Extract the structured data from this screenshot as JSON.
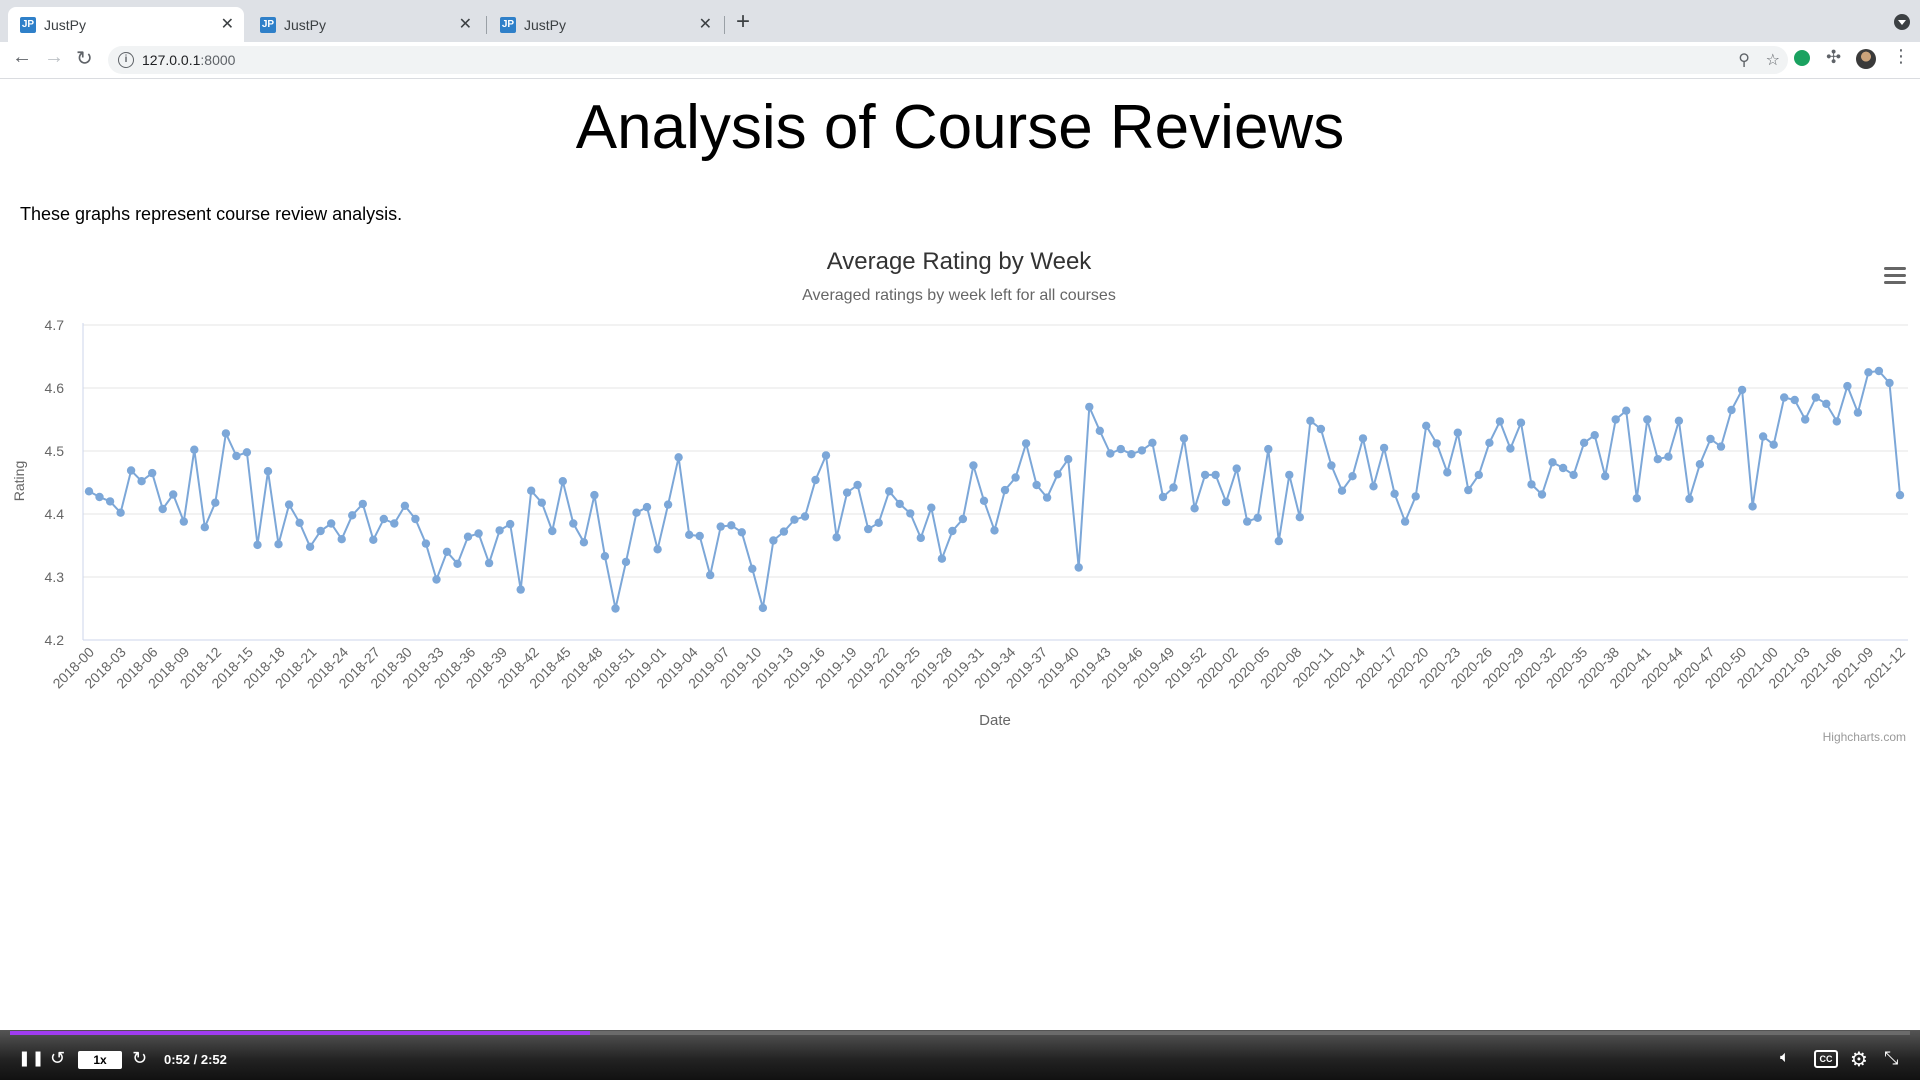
{
  "browser": {
    "tabs": [
      {
        "label": "JustPy",
        "favicon": "JP",
        "active": true
      },
      {
        "label": "JustPy",
        "favicon": "JP",
        "active": false
      },
      {
        "label": "JustPy",
        "favicon": "JP",
        "active": false
      }
    ],
    "url_host": "127.0.0.1",
    "url_port": ":8000"
  },
  "page": {
    "title": "Analysis of Course Reviews",
    "intro": "These graphs represent course review analysis."
  },
  "chart_data": {
    "type": "line",
    "title": "Average Rating by Week",
    "subtitle": "Averaged ratings by week left for all courses",
    "xlabel": "Date",
    "ylabel": "Rating",
    "ylim": [
      4.2,
      4.7
    ],
    "yticks": [
      4.2,
      4.3,
      4.4,
      4.5,
      4.6,
      4.7
    ],
    "grid": true,
    "credits": "Highcharts.com",
    "color": "#7ca7d8",
    "tick_labels": [
      "2018-00",
      "2018-03",
      "2018-06",
      "2018-09",
      "2018-12",
      "2018-15",
      "2018-18",
      "2018-21",
      "2018-24",
      "2018-27",
      "2018-30",
      "2018-33",
      "2018-36",
      "2018-39",
      "2018-42",
      "2018-45",
      "2018-48",
      "2018-51",
      "2019-01",
      "2019-04",
      "2019-07",
      "2019-10",
      "2019-13",
      "2019-16",
      "2019-19",
      "2019-22",
      "2019-25",
      "2019-28",
      "2019-31",
      "2019-34",
      "2019-37",
      "2019-40",
      "2019-43",
      "2019-46",
      "2019-49",
      "2019-52",
      "2020-02",
      "2020-05",
      "2020-08",
      "2020-11",
      "2020-14",
      "2020-17",
      "2020-20",
      "2020-23",
      "2020-26",
      "2020-29",
      "2020-32",
      "2020-35",
      "2020-38",
      "2020-41",
      "2020-44",
      "2020-47",
      "2020-50",
      "2021-00",
      "2021-03",
      "2021-06",
      "2021-09",
      "2021-12"
    ],
    "values": [
      4.436,
      4.427,
      4.42,
      4.402,
      4.469,
      4.452,
      4.465,
      4.408,
      4.431,
      4.388,
      4.502,
      4.379,
      4.418,
      4.528,
      4.492,
      4.498,
      4.351,
      4.468,
      4.352,
      4.415,
      4.386,
      4.348,
      4.373,
      4.385,
      4.36,
      4.398,
      4.416,
      4.359,
      4.392,
      4.385,
      4.413,
      4.392,
      4.353,
      4.296,
      4.34,
      4.321,
      4.364,
      4.369,
      4.322,
      4.374,
      4.384,
      4.28,
      4.437,
      4.418,
      4.373,
      4.452,
      4.385,
      4.355,
      4.43,
      4.333,
      4.25,
      4.324,
      4.402,
      4.411,
      4.344,
      4.415,
      4.49,
      4.367,
      4.365,
      4.303,
      4.38,
      4.382,
      4.371,
      4.313,
      4.251,
      4.358,
      4.372,
      4.391,
      4.396,
      4.454,
      4.493,
      4.363,
      4.434,
      4.446,
      4.376,
      4.386,
      4.436,
      4.416,
      4.401,
      4.362,
      4.41,
      4.329,
      4.373,
      4.392,
      4.477,
      4.421,
      4.374,
      4.438,
      4.458,
      4.512,
      4.446,
      4.426,
      4.463,
      4.487,
      4.315,
      4.57,
      4.532,
      4.496,
      4.503,
      4.495,
      4.501,
      4.513,
      4.427,
      4.442,
      4.52,
      4.409,
      4.462,
      4.462,
      4.419,
      4.472,
      4.388,
      4.394,
      4.503,
      4.357,
      4.462,
      4.395,
      4.548,
      4.535,
      4.477,
      4.437,
      4.46,
      4.52,
      4.444,
      4.505,
      4.432,
      4.388,
      4.428,
      4.54,
      4.512,
      4.466,
      4.529,
      4.438,
      4.462,
      4.513,
      4.547,
      4.504,
      4.545,
      4.447,
      4.431,
      4.482,
      4.473,
      4.462,
      4.513,
      4.525,
      4.46,
      4.55,
      4.564,
      4.425,
      4.55,
      4.487,
      4.491,
      4.548,
      4.424,
      4.479,
      4.519,
      4.507,
      4.565,
      4.597,
      4.412,
      4.523,
      4.51,
      4.585,
      4.581,
      4.55,
      4.585,
      4.575,
      4.547,
      4.603,
      4.561,
      4.625,
      4.627,
      4.608,
      4.43
    ]
  },
  "player": {
    "speed": "1x",
    "time": "0:52 / 2:52",
    "progress": 0.305
  }
}
